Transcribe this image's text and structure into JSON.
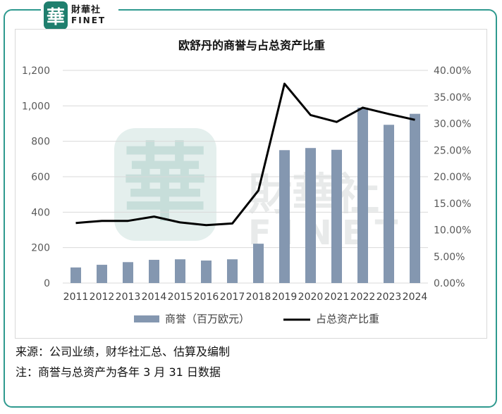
{
  "logo": {
    "badge_char": "華",
    "name_cn": "財華社",
    "name_en": "FINET"
  },
  "watermark": {
    "char": "華",
    "name_cn": "財華社",
    "name_en": "FINET"
  },
  "chart_data": {
    "type": "bar",
    "title": "欧舒丹的商誉与占总资产比重",
    "categories": [
      "2011",
      "2012",
      "2013",
      "2014",
      "2015",
      "2016",
      "2017",
      "2018",
      "2019",
      "2020",
      "2021",
      "2022",
      "2023",
      "2024"
    ],
    "series": [
      {
        "name": "商誉（百万欧元）",
        "type": "bar",
        "axis": "left",
        "color": "#8497b0",
        "values": [
          88,
          103,
          118,
          131,
          134,
          127,
          134,
          222,
          750,
          762,
          752,
          990,
          893,
          955
        ]
      },
      {
        "name": "占总资产比重",
        "type": "line",
        "axis": "right",
        "color": "#000000",
        "values": [
          11.3,
          11.7,
          11.7,
          12.5,
          11.4,
          10.9,
          11.2,
          17.4,
          37.5,
          31.6,
          30.3,
          33.0,
          31.8,
          30.7
        ]
      }
    ],
    "y_left": {
      "ylim": [
        0,
        1200
      ],
      "ticks": [
        "0",
        "200",
        "400",
        "600",
        "800",
        "1,000",
        "1,200"
      ]
    },
    "y_right": {
      "ylim": [
        0,
        40
      ],
      "ticks": [
        "0.00%",
        "5.00%",
        "10.00%",
        "15.00%",
        "20.00%",
        "25.00%",
        "30.00%",
        "35.00%",
        "40.00%"
      ]
    },
    "grid": true,
    "legend_position": "bottom"
  },
  "footer": {
    "source": "来源：公司业绩，财华社汇总、估算及编制",
    "note": "注：商誉与总资产为各年 3 月 31 日数据"
  }
}
